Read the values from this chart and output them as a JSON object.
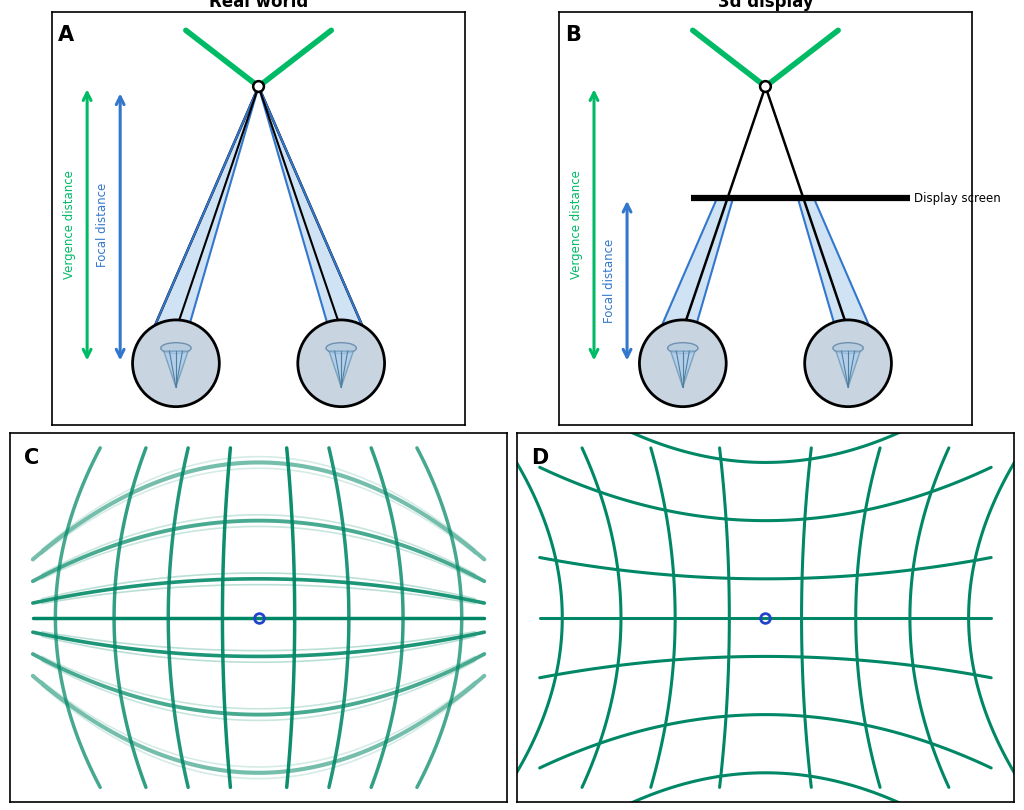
{
  "title_A": "Real world",
  "title_B": "3d display",
  "label_vergence": "Vergence distance",
  "label_focal": "Focal distance",
  "label_display": "Display screen",
  "green_color": "#00bb66",
  "blue_color": "#3377cc",
  "blue_cone_color": "#aaccee",
  "grid_color": "#008866",
  "eye_fill": "#c8d4e0",
  "eye_inner": "#a0b8d0",
  "bg_color": "#ffffff",
  "border_color": "#aaaaaa",
  "figsize": [
    10.24,
    8.1
  ],
  "dpi": 100
}
